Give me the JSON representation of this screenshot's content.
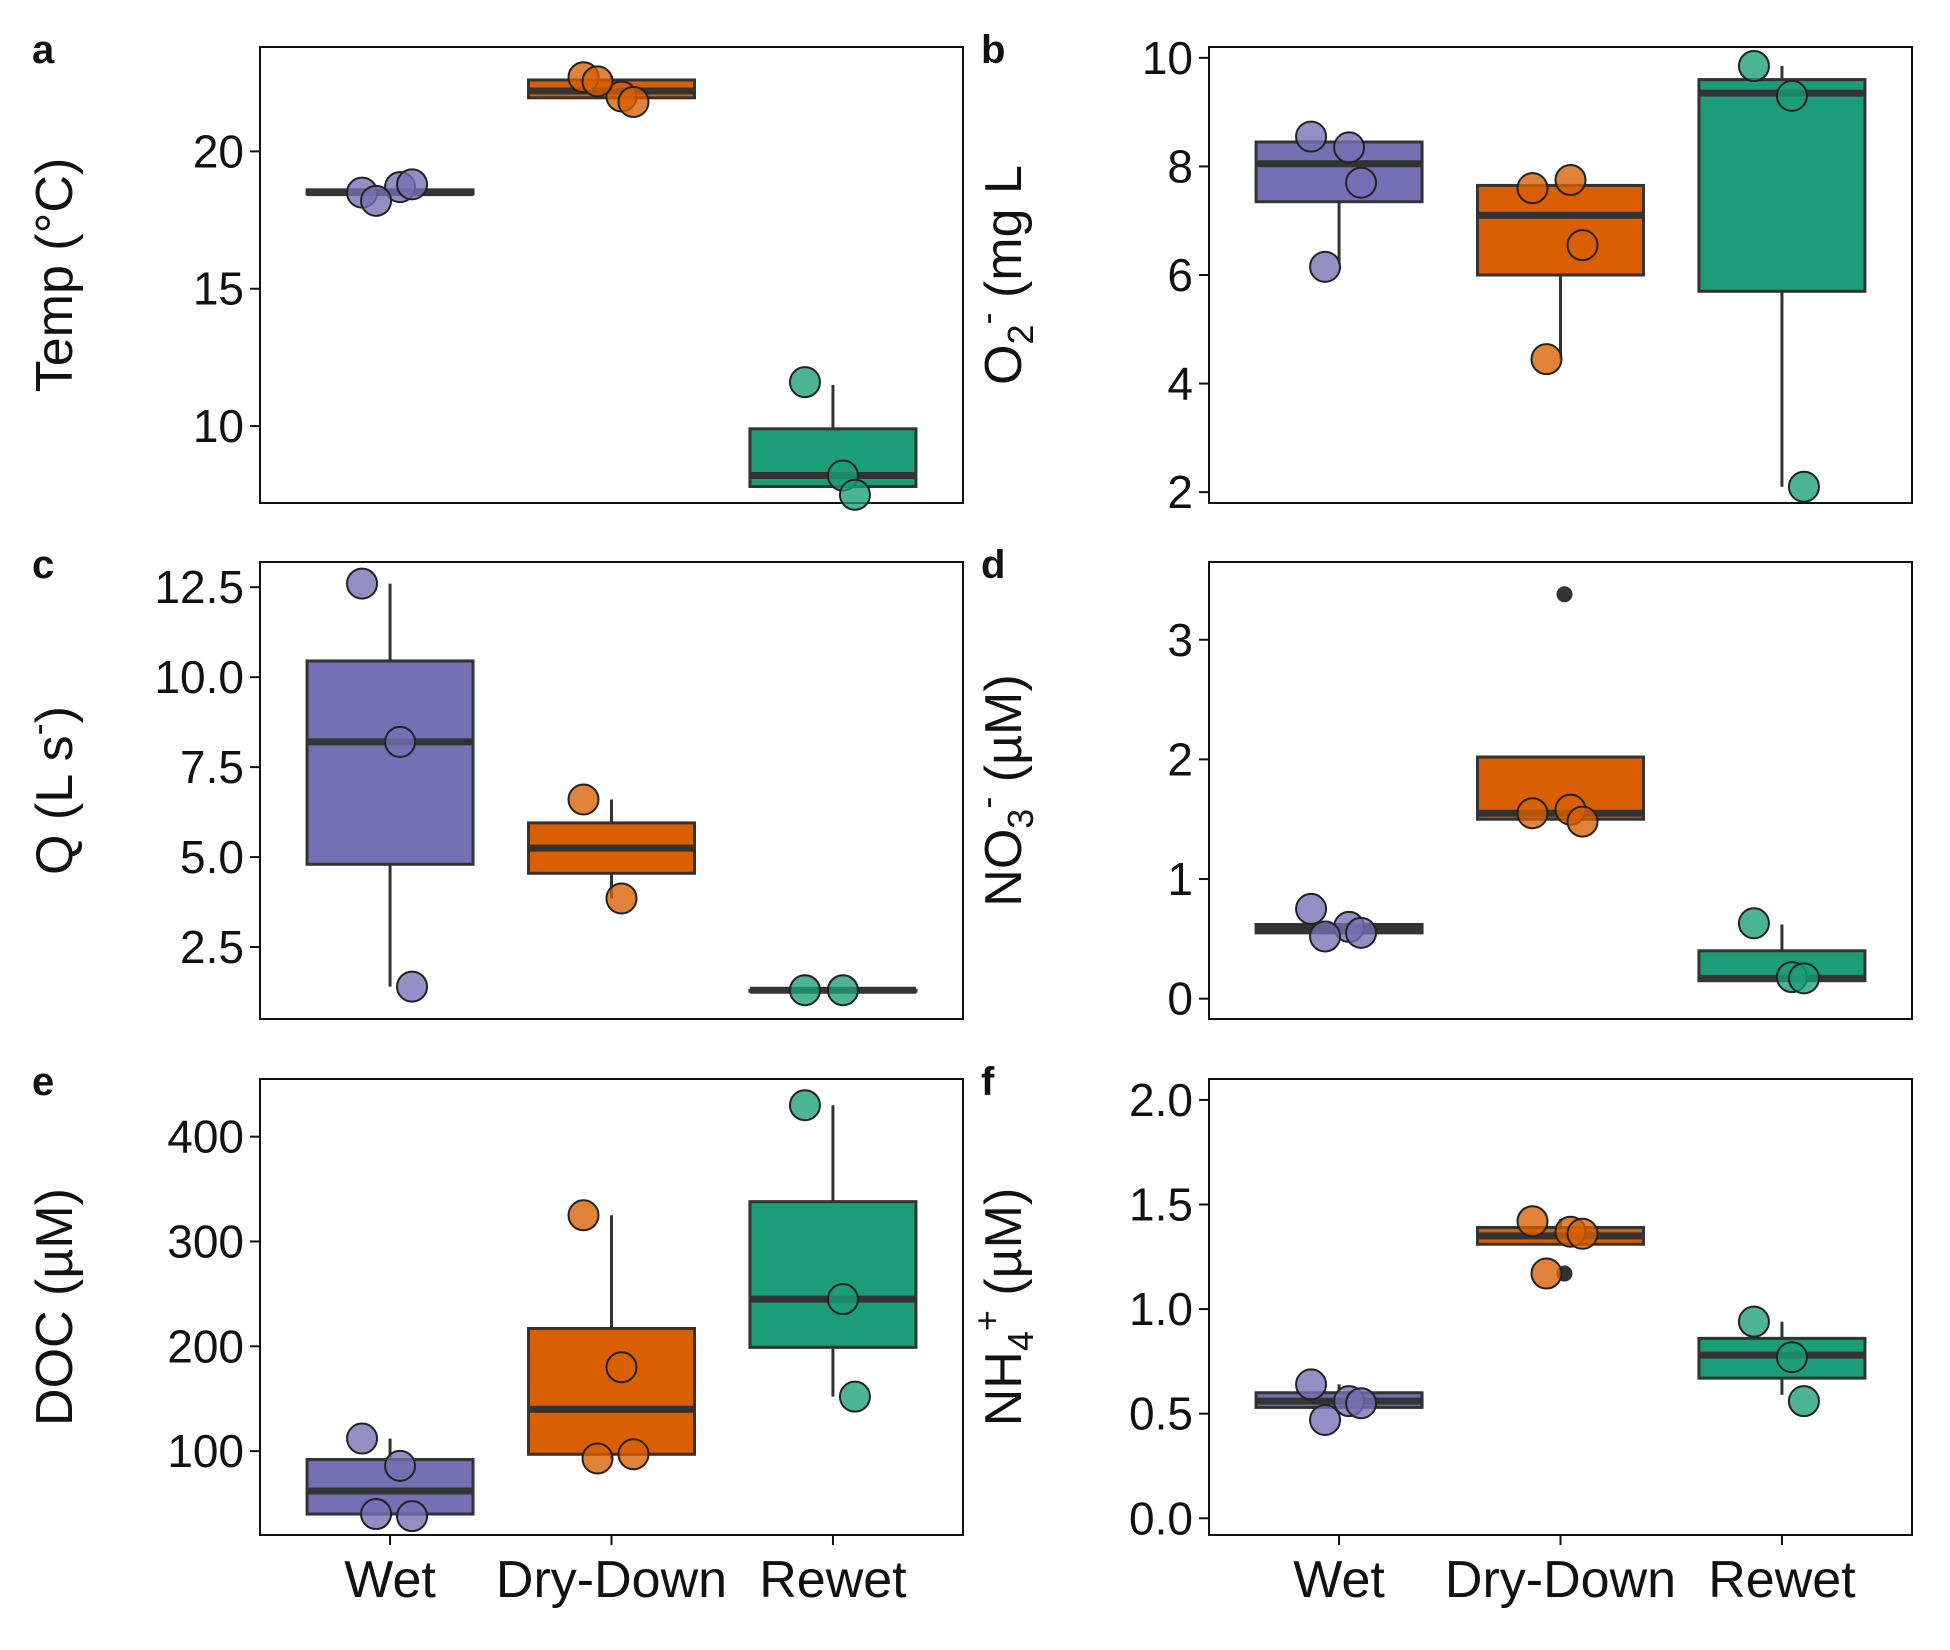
{
  "colors": {
    "Wet": "#7570b3",
    "Dry-Down": "#d95f02",
    "Rewet": "#1b9e77",
    "box_line": "#333333",
    "point_edge": "#222222",
    "frame": "#111111"
  },
  "chart_data": [
    {
      "type": "box",
      "panel": "a",
      "ylabel": {
        "base": "Temp (°C)"
      },
      "ylim": [
        7.2,
        23.8
      ],
      "yticks": [
        10,
        15,
        20
      ],
      "yticklabels": [
        "10",
        "15",
        "20"
      ],
      "categories": [
        "Wet",
        "Dry-Down",
        "Rewet"
      ],
      "show_xticklabels": false,
      "boxes": [
        {
          "category": "Wet",
          "q1": 18.45,
          "median": 18.5,
          "q3": 18.6,
          "whisker_low": 18.45,
          "whisker_high": 18.6,
          "points": [
            18.5,
            18.7,
            18.8,
            18.2
          ]
        },
        {
          "category": "Dry-Down",
          "q1": 21.95,
          "median": 22.2,
          "q3": 22.6,
          "whisker_low": 21.95,
          "whisker_high": 22.75,
          "points": [
            22.7,
            22.0,
            21.8,
            22.55
          ]
        },
        {
          "category": "Rewet",
          "q1": 7.8,
          "median": 8.2,
          "q3": 9.9,
          "whisker_low": 7.8,
          "whisker_high": 11.5,
          "points": [
            11.6,
            8.2,
            7.5
          ]
        }
      ]
    },
    {
      "type": "box",
      "panel": "b",
      "ylabel": {
        "base": "O",
        "sub": "2",
        "rest": " (mg L",
        "sup": "-",
        "end": ")"
      },
      "ylim": [
        1.8,
        10.2
      ],
      "yticks": [
        2,
        4,
        6,
        8,
        10
      ],
      "yticklabels": [
        "2",
        "4",
        "6",
        "8",
        "10"
      ],
      "categories": [
        "Wet",
        "Dry-Down",
        "Rewet"
      ],
      "show_xticklabels": false,
      "boxes": [
        {
          "category": "Wet",
          "q1": 7.35,
          "median": 8.05,
          "q3": 8.45,
          "whisker_low": 6.2,
          "whisker_high": 8.45,
          "points": [
            8.55,
            8.35,
            7.7,
            6.15
          ]
        },
        {
          "category": "Dry-Down",
          "q1": 6.0,
          "median": 7.1,
          "q3": 7.65,
          "whisker_low": 4.45,
          "whisker_high": 7.65,
          "points": [
            7.6,
            7.75,
            6.55,
            4.45
          ]
        },
        {
          "category": "Rewet",
          "q1": 5.7,
          "median": 9.35,
          "q3": 9.6,
          "whisker_low": 2.1,
          "whisker_high": 9.85,
          "points": [
            9.85,
            9.3,
            2.1
          ]
        }
      ]
    },
    {
      "type": "box",
      "panel": "c",
      "ylabel": {
        "base": "Q (L s",
        "sup": "-",
        "end": ")"
      },
      "ylim": [
        0.5,
        13.2
      ],
      "yticks": [
        2.5,
        5.0,
        7.5,
        10.0,
        12.5
      ],
      "yticklabels": [
        "2.5",
        "5.0",
        "7.5",
        "10.0",
        "12.5"
      ],
      "categories": [
        "Wet",
        "Dry-Down",
        "Rewet"
      ],
      "show_xticklabels": false,
      "boxes": [
        {
          "category": "Wet",
          "q1": 4.8,
          "median": 8.2,
          "q3": 10.45,
          "whisker_low": 1.4,
          "whisker_high": 12.6,
          "points": [
            12.6,
            8.2,
            1.4
          ]
        },
        {
          "category": "Dry-Down",
          "q1": 4.55,
          "median": 5.25,
          "q3": 5.95,
          "whisker_low": 3.85,
          "whisker_high": 6.6,
          "points": [
            6.6,
            3.85
          ]
        },
        {
          "category": "Rewet",
          "q1": 1.3,
          "median": 1.3,
          "q3": 1.3,
          "whisker_low": 1.3,
          "whisker_high": 1.3,
          "points": [
            1.3,
            1.3
          ]
        }
      ]
    },
    {
      "type": "box",
      "panel": "d",
      "ylabel": {
        "base": "NO",
        "sub": "3",
        "sup": "-",
        "rest": " (µM)"
      },
      "ylim": [
        -0.17,
        3.65
      ],
      "yticks": [
        0,
        1,
        2,
        3
      ],
      "yticklabels": [
        "0",
        "1",
        "2",
        "3"
      ],
      "categories": [
        "Wet",
        "Dry-Down",
        "Rewet"
      ],
      "show_xticklabels": false,
      "boxes": [
        {
          "category": "Wet",
          "q1": 0.55,
          "median": 0.58,
          "q3": 0.62,
          "whisker_low": 0.55,
          "whisker_high": 0.62,
          "points": [
            0.75,
            0.6,
            0.55,
            0.52
          ]
        },
        {
          "category": "Dry-Down",
          "q1": 1.5,
          "median": 1.55,
          "q3": 2.02,
          "whisker_low": 1.5,
          "whisker_high": 2.02,
          "points": [
            1.55,
            1.58,
            1.48
          ],
          "outliers": [
            3.38
          ]
        },
        {
          "category": "Rewet",
          "q1": 0.15,
          "median": 0.17,
          "q3": 0.4,
          "whisker_low": 0.15,
          "whisker_high": 0.62,
          "points": [
            0.63,
            0.18,
            0.17
          ]
        }
      ]
    },
    {
      "type": "box",
      "panel": "e",
      "ylabel": {
        "base": "DOC (µM)"
      },
      "ylim": [
        20,
        455
      ],
      "yticks": [
        100,
        200,
        300,
        400
      ],
      "yticklabels": [
        "100",
        "200",
        "300",
        "400"
      ],
      "categories": [
        "Wet",
        "Dry-Down",
        "Rewet"
      ],
      "show_xticklabels": true,
      "boxes": [
        {
          "category": "Wet",
          "q1": 40,
          "median": 62,
          "q3": 92,
          "whisker_low": 40,
          "whisker_high": 112,
          "points": [
            112,
            86,
            38,
            40
          ]
        },
        {
          "category": "Dry-Down",
          "q1": 97,
          "median": 140,
          "q3": 217,
          "whisker_low": 93,
          "whisker_high": 325,
          "points": [
            325,
            180,
            97,
            93
          ]
        },
        {
          "category": "Rewet",
          "q1": 199,
          "median": 245,
          "q3": 338,
          "whisker_low": 152,
          "whisker_high": 430,
          "points": [
            430,
            245,
            152
          ]
        }
      ]
    },
    {
      "type": "box",
      "panel": "f",
      "ylabel": {
        "base": "NH",
        "sub": "4",
        "sup": "+",
        "rest": " (µM)"
      },
      "ylim": [
        -0.08,
        2.1
      ],
      "yticks": [
        0.0,
        0.5,
        1.0,
        1.5,
        2.0
      ],
      "yticklabels": [
        "0.0",
        "0.5",
        "1.0",
        "1.5",
        "2.0"
      ],
      "categories": [
        "Wet",
        "Dry-Down",
        "Rewet"
      ],
      "show_xticklabels": true,
      "boxes": [
        {
          "category": "Wet",
          "q1": 0.53,
          "median": 0.56,
          "q3": 0.6,
          "whisker_low": 0.53,
          "whisker_high": 0.64,
          "points": [
            0.64,
            0.56,
            0.55,
            0.47
          ]
        },
        {
          "category": "Dry-Down",
          "q1": 1.31,
          "median": 1.35,
          "q3": 1.39,
          "whisker_low": 1.31,
          "whisker_high": 1.43,
          "points": [
            1.42,
            1.37,
            1.36,
            1.17
          ],
          "outliers": [
            1.17
          ]
        },
        {
          "category": "Rewet",
          "q1": 0.67,
          "median": 0.78,
          "q3": 0.86,
          "whisker_low": 0.59,
          "whisker_high": 0.94,
          "points": [
            0.94,
            0.77,
            0.56
          ]
        }
      ]
    }
  ]
}
